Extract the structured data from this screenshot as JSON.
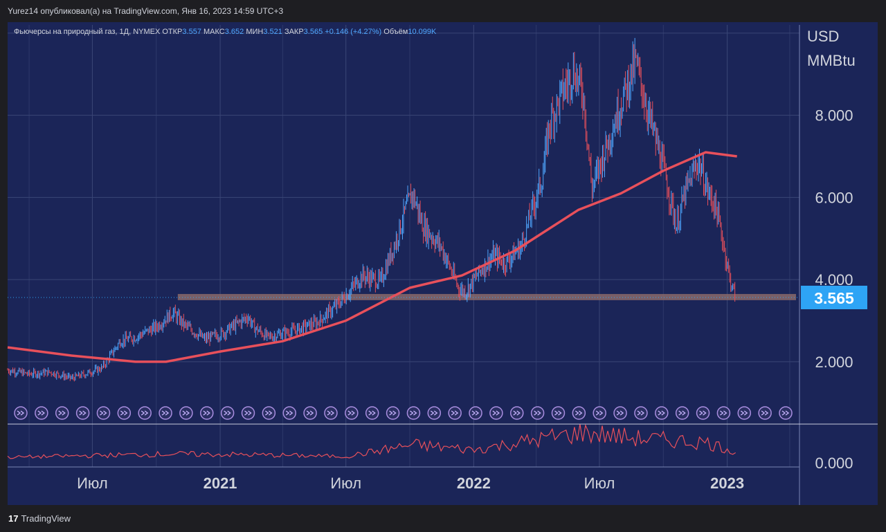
{
  "header": {
    "publisher_line": "Yurez14 опубликовал(а) на TradingView.com, Янв 16, 2023 14:59 UTC+3"
  },
  "legend": {
    "instrument": "Фьючерсы на природный газ, 1Д, NYMEX",
    "open_label": "ОТКР",
    "open": "3.557",
    "high_label": "МАКС",
    "high": "3.652",
    "low_label": "МИН",
    "low": "3.521",
    "close_label": "ЗАКР",
    "close": "3.565",
    "change": "+0.146 (+4.27%)",
    "volume_label": "Объём",
    "volume": "10.099K"
  },
  "price_axis": {
    "unit_line1": "USD",
    "unit_line2": "MMBtu",
    "current_price": "3.565"
  },
  "footer": {
    "brand": "TradingView"
  },
  "colors": {
    "background": "#1b2558",
    "ma_line": "#e8505b",
    "up_candle": "#4fa7ff",
    "down_candle": "#e8505b",
    "support_zone": "#8a6a6a",
    "price_tag": "#2ea4f5",
    "grid": "#3a4676"
  },
  "event_icon": "double-arrow-circle-icon",
  "event_count": 38,
  "chart_data": {
    "type": "line",
    "title": "Фьючерсы на природный газ, 1Д, NYMEX",
    "xlabel": "",
    "ylabel": "USD MMBtu",
    "x_ticks": [
      "Июл",
      "2021",
      "Июл",
      "2022",
      "Июл",
      "2023"
    ],
    "y_ticks": [
      "2.000",
      "4.000",
      "6.000",
      "8.000"
    ],
    "volume_y_tick": "0.000",
    "ylim": [
      0.5,
      10.2
    ],
    "grid": true,
    "x_range": [
      "2020-03-01",
      "2023-04-15"
    ],
    "series": [
      {
        "type": "candles",
        "x": [
          "2020-03-01",
          "2020-04-01",
          "2020-05-01",
          "2020-06-01",
          "2020-06-20",
          "2020-07-15",
          "2020-08-10",
          "2020-09-01",
          "2020-10-01",
          "2020-10-25",
          "2020-11-10",
          "2020-12-10",
          "2021-01-05",
          "2021-02-10",
          "2021-02-18",
          "2021-03-10",
          "2021-04-15",
          "2021-05-20",
          "2021-06-20",
          "2021-07-10",
          "2021-07-25",
          "2021-08-20",
          "2021-09-10",
          "2021-09-25",
          "2021-10-05",
          "2021-10-20",
          "2021-11-15",
          "2021-12-10",
          "2021-12-20",
          "2022-01-10",
          "2022-01-30",
          "2022-02-15",
          "2022-03-10",
          "2022-04-10",
          "2022-04-20",
          "2022-05-10",
          "2022-05-25",
          "2022-06-08",
          "2022-06-20",
          "2022-07-10",
          "2022-08-01",
          "2022-08-22",
          "2022-09-10",
          "2022-09-30",
          "2022-10-20",
          "2022-11-01",
          "2022-11-20",
          "2022-12-05",
          "2022-12-15",
          "2022-12-25",
          "2023-01-05",
          "2023-01-13"
        ],
        "values": [
          1.8,
          1.7,
          1.75,
          1.6,
          1.7,
          1.85,
          2.5,
          2.6,
          2.85,
          3.2,
          2.9,
          2.55,
          2.7,
          3.1,
          2.85,
          2.6,
          2.75,
          2.95,
          3.4,
          3.8,
          4.1,
          3.95,
          4.9,
          5.7,
          6.1,
          5.3,
          4.8,
          3.8,
          3.7,
          4.2,
          4.6,
          4.4,
          4.8,
          6.5,
          7.8,
          8.6,
          9.1,
          8.5,
          6.2,
          7.2,
          8.3,
          9.3,
          8.0,
          6.8,
          5.3,
          6.1,
          6.9,
          6.1,
          5.8,
          5.0,
          4.0,
          3.565
        ]
      },
      {
        "type": "moving-average",
        "x": [
          "2020-03-01",
          "2020-06-01",
          "2020-09-01",
          "2020-10-15",
          "2021-01-01",
          "2021-04-01",
          "2021-07-01",
          "2021-10-01",
          "2021-12-15",
          "2022-03-01",
          "2022-06-01",
          "2022-08-01",
          "2022-10-01",
          "2022-12-01",
          "2023-01-15"
        ],
        "values": [
          2.35,
          2.15,
          2.0,
          2.0,
          2.25,
          2.5,
          3.0,
          3.8,
          4.1,
          4.7,
          5.7,
          6.1,
          6.65,
          7.1,
          7.0
        ]
      },
      {
        "type": "volume",
        "x": [
          "2020-03-01",
          "2020-10-20",
          "2021-02-18",
          "2021-07-01",
          "2021-10-05",
          "2022-01-01",
          "2022-06-08",
          "2022-08-20",
          "2022-12-01",
          "2023-01-13"
        ],
        "values": [
          0.5,
          0.9,
          0.8,
          0.6,
          2.0,
          1.4,
          3.5,
          2.8,
          2.3,
          1.2
        ]
      }
    ],
    "support_zone": [
      3.5,
      3.65
    ],
    "last_price": 3.565
  }
}
